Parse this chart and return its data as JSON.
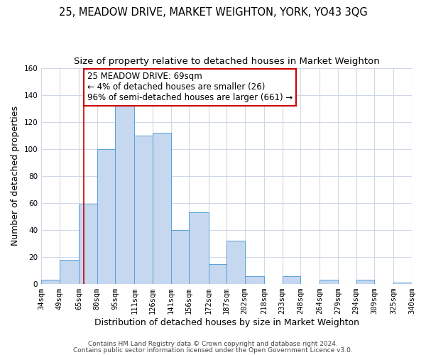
{
  "title1": "25, MEADOW DRIVE, MARKET WEIGHTON, YORK, YO43 3QG",
  "title2": "Size of property relative to detached houses in Market Weighton",
  "xlabel": "Distribution of detached houses by size in Market Weighton",
  "ylabel": "Number of detached properties",
  "footer1": "Contains HM Land Registry data © Crown copyright and database right 2024.",
  "footer2": "Contains public sector information licensed under the Open Government Licence v3.0.",
  "annotation_line1": "25 MEADOW DRIVE: 69sqm",
  "annotation_line2": "← 4% of detached houses are smaller (26)",
  "annotation_line3": "96% of semi-detached houses are larger (661) →",
  "bin_edges": [
    34,
    49,
    65,
    80,
    95,
    111,
    126,
    141,
    156,
    172,
    187,
    202,
    218,
    233,
    248,
    264,
    279,
    294,
    309,
    325,
    340
  ],
  "bar_heights": [
    3,
    18,
    59,
    100,
    133,
    110,
    112,
    40,
    53,
    15,
    32,
    6,
    0,
    6,
    0,
    3,
    0,
    3,
    0,
    1
  ],
  "bar_color": "#c5d8f0",
  "bar_edge_color": "#5a9fd4",
  "x_tick_labels": [
    "34sqm",
    "49sqm",
    "65sqm",
    "80sqm",
    "95sqm",
    "111sqm",
    "126sqm",
    "141sqm",
    "156sqm",
    "172sqm",
    "187sqm",
    "202sqm",
    "218sqm",
    "233sqm",
    "248sqm",
    "264sqm",
    "279sqm",
    "294sqm",
    "309sqm",
    "325sqm",
    "340sqm"
  ],
  "x_tick_positions": [
    34,
    49,
    65,
    80,
    95,
    111,
    126,
    141,
    156,
    172,
    187,
    202,
    218,
    233,
    248,
    264,
    279,
    294,
    309,
    325,
    340
  ],
  "ylim": [
    0,
    160
  ],
  "yticks": [
    0,
    20,
    40,
    60,
    80,
    100,
    120,
    140,
    160
  ],
  "property_x": 69,
  "red_line_color": "#cc0000",
  "annotation_box_edge_color": "#cc0000",
  "background_color": "#ffffff",
  "grid_color": "#d0d8e8",
  "title1_fontsize": 10.5,
  "title2_fontsize": 9.5,
  "axis_label_fontsize": 9,
  "tick_label_fontsize": 7.5,
  "annotation_fontsize": 8.5,
  "footer_fontsize": 6.5
}
